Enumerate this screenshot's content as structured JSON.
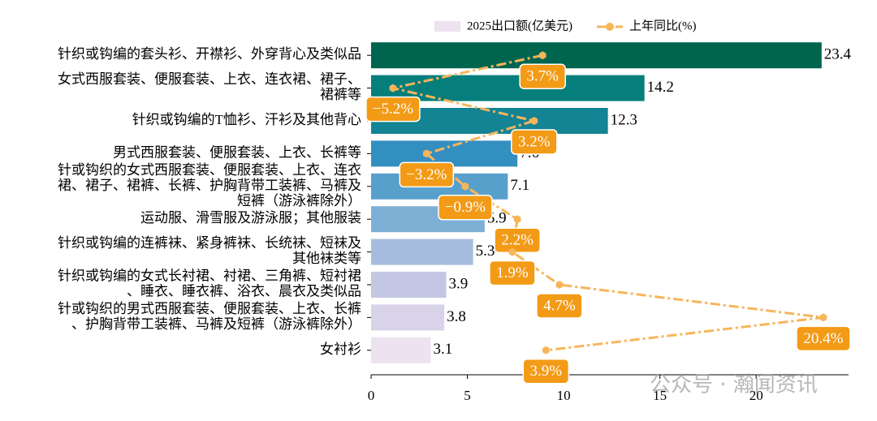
{
  "chart_data": {
    "type": "bar",
    "orientation": "horizontal",
    "categories": [
      "针织或钩编的套头衫、开襟衫、外穿背心及类似品",
      "女式西服套装、便服套装、上衣、连衣裙、裙子、\n裙裤等",
      "针织或钩编的T恤衫、汗衫及其他背心",
      "男式西服套装、便服套装、上衣、长裤等",
      "针或钩织的女式西服套装、便服套装、上衣、连衣\n裙、裙子、裙裤、长裤、护胸背带工装裤、马裤及\n短裤（游泳裤除外）",
      "运动服、滑雪服及游泳服；其他服装",
      "针织或钩编的连裤袜、紧身裤袜、长统袜、短袜及\n其他袜类等",
      "针织或钩编的女式长衬裙、衬裙、三角裤、短衬裙\n、睡衣、睡衣裤、浴衣、晨衣及类似品",
      "针或钩织的男式西服套装、便服套装、上衣、长裤\n、护胸背带工装裤、马裤及短裤（游泳裤除外）",
      "女衬衫"
    ],
    "series": [
      {
        "name": "2025出口额(亿美元)",
        "type": "bar",
        "colors": [
          "#00654f",
          "#067f7c",
          "#148394",
          "#338fc0",
          "#58a0cc",
          "#7eb0d5",
          "#a6bcde",
          "#c3c7e3",
          "#d8d3e8",
          "#ece2f0"
        ],
        "legend_color": "#ece2f0",
        "values": [
          23.4,
          14.2,
          12.3,
          7.6,
          7.1,
          5.9,
          5.3,
          3.9,
          3.8,
          3.1
        ]
      },
      {
        "name": "上年同比(%)",
        "type": "line",
        "axis": "x2",
        "color": "#f7b55a",
        "label_color": "#f39a16",
        "values": [
          3.7,
          -5.2,
          3.2,
          -3.2,
          -0.9,
          2.2,
          1.9,
          4.7,
          20.4,
          3.9
        ],
        "value_labels": [
          "3.7%",
          "−5.2%",
          "3.2%",
          "−3.2%",
          "−0.9%",
          "2.2%",
          "1.9%",
          "4.7%",
          "20.4%",
          "3.9%"
        ]
      }
    ],
    "xlim": [
      0,
      24.8
    ],
    "xticks": [
      0,
      5,
      10,
      15,
      20
    ],
    "x2lim": [
      -6.5,
      21.9
    ],
    "legend": "top",
    "watermark": "公众号 · 瀚闻资讯"
  }
}
